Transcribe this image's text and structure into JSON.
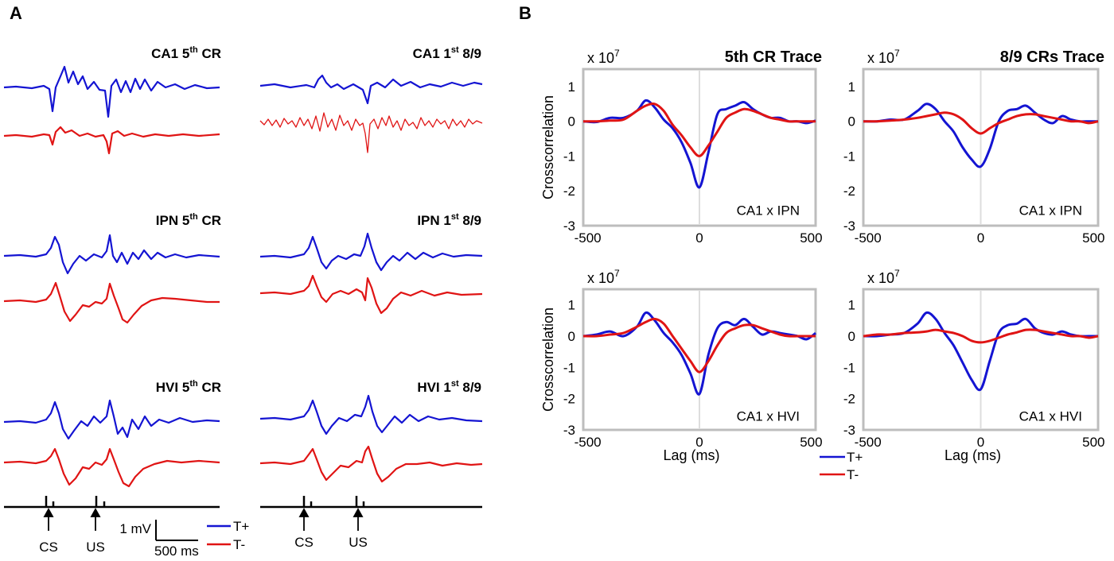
{
  "panels": {
    "a": "A",
    "b": "B"
  },
  "colors": {
    "t_plus": "#1414d2",
    "t_minus": "#e01414",
    "frame": "#bdbdbd"
  },
  "legend": {
    "t_plus": "T+",
    "t_minus": "T-"
  },
  "traces": [
    {
      "region": "CA1",
      "ordinal": "5",
      "sup": "th",
      "suffix": " CR"
    },
    {
      "region": "CA1",
      "ordinal": "1",
      "sup": "st",
      "suffix": " 8/9"
    },
    {
      "region": "IPN",
      "ordinal": "5",
      "sup": "th",
      "suffix": " CR"
    },
    {
      "region": "IPN",
      "ordinal": "1",
      "sup": "st",
      "suffix": " 8/9"
    },
    {
      "region": "HVI",
      "ordinal": "5",
      "sup": "th",
      "suffix": " CR"
    },
    {
      "region": "HVI",
      "ordinal": "1",
      "sup": "st",
      "suffix": " 8/9"
    }
  ],
  "stimulus": {
    "cs": "CS",
    "us": "US"
  },
  "scalebar": {
    "amplitude": "1 mV",
    "duration": "500 ms"
  },
  "chart_data": [
    {
      "type": "line",
      "title": "5th CR Trace",
      "annotation": "CA1 x IPN",
      "exponent_label": "x 10",
      "exponent": "7",
      "xlabel": "",
      "ylabel": "Crosscorrelation",
      "xlim": [
        -500,
        500
      ],
      "ylim": [
        -3,
        1.5
      ],
      "xticks": [
        -500,
        0,
        500
      ],
      "yticks": [
        1,
        0,
        -1,
        -2,
        -3
      ],
      "x": [
        -520,
        -460,
        -400,
        -340,
        -280,
        -240,
        -200,
        -160,
        -120,
        -80,
        -40,
        0,
        40,
        80,
        120,
        160,
        200,
        240,
        280,
        320,
        360,
        400,
        440,
        480,
        520
      ],
      "series": [
        {
          "name": "T+",
          "values": [
            0.0,
            -0.02,
            0.1,
            0.1,
            0.3,
            0.6,
            0.4,
            0.05,
            -0.2,
            -0.6,
            -1.2,
            -1.9,
            -0.9,
            0.2,
            0.35,
            0.45,
            0.55,
            0.35,
            0.2,
            0.1,
            0.1,
            0.0,
            0.0,
            -0.05,
            0.02
          ]
        },
        {
          "name": "T-",
          "values": [
            0.0,
            0.0,
            0.02,
            0.05,
            0.3,
            0.45,
            0.5,
            0.3,
            -0.1,
            -0.4,
            -0.75,
            -1.0,
            -0.7,
            -0.3,
            0.1,
            0.25,
            0.35,
            0.3,
            0.2,
            0.1,
            0.05,
            0.0,
            0.0,
            0.0,
            0.0
          ]
        }
      ]
    },
    {
      "type": "line",
      "title": "8/9 CRs Trace",
      "annotation": "CA1 x IPN",
      "exponent_label": "x 10",
      "exponent": "7",
      "xlabel": "",
      "ylabel": "",
      "xlim": [
        -500,
        500
      ],
      "ylim": [
        -3,
        1.5
      ],
      "xticks": [
        -500,
        0,
        500
      ],
      "yticks": [
        1,
        0,
        -1,
        -2,
        -3
      ],
      "x": [
        -520,
        -460,
        -400,
        -340,
        -280,
        -240,
        -200,
        -160,
        -120,
        -80,
        -40,
        0,
        40,
        80,
        120,
        160,
        200,
        240,
        280,
        320,
        360,
        400,
        440,
        480,
        520
      ],
      "series": [
        {
          "name": "T+",
          "values": [
            0.0,
            0.0,
            0.05,
            0.05,
            0.3,
            0.5,
            0.35,
            0.0,
            -0.3,
            -0.75,
            -1.1,
            -1.3,
            -0.8,
            0.0,
            0.3,
            0.35,
            0.45,
            0.25,
            0.05,
            -0.05,
            0.15,
            0.05,
            0.0,
            0.0,
            0.0
          ]
        },
        {
          "name": "T-",
          "values": [
            0.0,
            0.0,
            0.02,
            0.05,
            0.1,
            0.15,
            0.2,
            0.25,
            0.2,
            0.05,
            -0.2,
            -0.35,
            -0.2,
            -0.05,
            0.05,
            0.15,
            0.2,
            0.2,
            0.15,
            0.1,
            0.05,
            0.0,
            0.0,
            -0.05,
            0.0
          ]
        }
      ]
    },
    {
      "type": "line",
      "title": "",
      "annotation": "CA1 x HVI",
      "exponent_label": "x 10",
      "exponent": "7",
      "xlabel": "Lag (ms)",
      "ylabel": "Crosscorrelation",
      "xlim": [
        -500,
        500
      ],
      "ylim": [
        -3,
        1.5
      ],
      "xticks": [
        -500,
        0,
        500
      ],
      "yticks": [
        1,
        0,
        -1,
        -2,
        -3
      ],
      "x": [
        -520,
        -460,
        -400,
        -340,
        -280,
        -240,
        -200,
        -160,
        -120,
        -80,
        -40,
        0,
        40,
        80,
        120,
        160,
        200,
        240,
        280,
        320,
        360,
        400,
        440,
        480,
        520
      ],
      "series": [
        {
          "name": "T+",
          "values": [
            0.0,
            0.05,
            0.15,
            0.0,
            0.3,
            0.75,
            0.5,
            0.1,
            -0.2,
            -0.6,
            -1.2,
            -1.85,
            -0.6,
            0.25,
            0.45,
            0.35,
            0.55,
            0.3,
            0.05,
            0.15,
            0.1,
            0.05,
            0.0,
            -0.1,
            0.1
          ]
        },
        {
          "name": "T-",
          "values": [
            0.0,
            0.0,
            0.05,
            0.1,
            0.3,
            0.45,
            0.55,
            0.4,
            0.0,
            -0.4,
            -0.8,
            -1.15,
            -0.8,
            -0.3,
            0.1,
            0.25,
            0.35,
            0.35,
            0.25,
            0.15,
            0.05,
            0.0,
            0.0,
            0.0,
            0.0
          ]
        }
      ]
    },
    {
      "type": "line",
      "title": "",
      "annotation": "CA1 x HVI",
      "exponent_label": "x 10",
      "exponent": "7",
      "xlabel": "Lag (ms)",
      "ylabel": "",
      "xlim": [
        -500,
        500
      ],
      "ylim": [
        -3,
        1.5
      ],
      "xticks": [
        -500,
        0,
        500
      ],
      "yticks": [
        1,
        0,
        -1,
        -2,
        -3
      ],
      "x": [
        -520,
        -460,
        -400,
        -340,
        -280,
        -240,
        -200,
        -160,
        -120,
        -80,
        -40,
        0,
        40,
        80,
        120,
        160,
        200,
        240,
        280,
        320,
        360,
        400,
        440,
        480,
        520
      ],
      "series": [
        {
          "name": "T+",
          "values": [
            0.0,
            0.0,
            0.05,
            0.1,
            0.4,
            0.75,
            0.55,
            0.1,
            -0.3,
            -0.85,
            -1.4,
            -1.7,
            -0.8,
            0.1,
            0.35,
            0.4,
            0.55,
            0.25,
            0.1,
            0.05,
            0.15,
            0.05,
            0.0,
            0.0,
            0.0
          ]
        },
        {
          "name": "T-",
          "values": [
            0.0,
            0.05,
            0.05,
            0.1,
            0.12,
            0.15,
            0.2,
            0.15,
            0.1,
            0.0,
            -0.15,
            -0.2,
            -0.15,
            -0.05,
            0.05,
            0.12,
            0.2,
            0.2,
            0.15,
            0.1,
            0.05,
            0.0,
            0.0,
            -0.05,
            0.0
          ]
        }
      ]
    }
  ]
}
